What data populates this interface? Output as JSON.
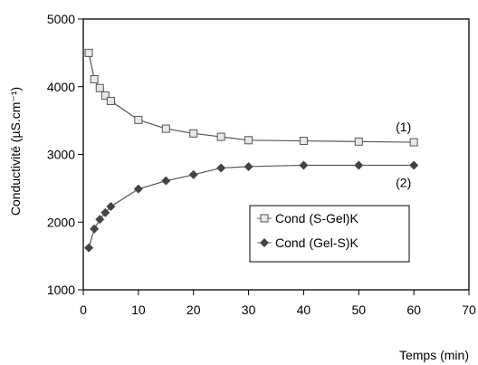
{
  "chart_data": {
    "type": "line",
    "xlabel": "Temps (min)",
    "ylabel": "Conductivité (µS.cm⁻¹)",
    "xlim": [
      0,
      70
    ],
    "ylim": [
      1000,
      5000
    ],
    "xticks": [
      0,
      10,
      20,
      30,
      40,
      50,
      60,
      70
    ],
    "yticks": [
      1000,
      2000,
      3000,
      4000,
      5000
    ],
    "grid": false,
    "legend_position": "center-right",
    "series": [
      {
        "name": "Cond (S-Gel)K",
        "marker": "square",
        "curve_label": "(1)",
        "x": [
          1,
          2,
          3,
          4,
          5,
          10,
          15,
          20,
          25,
          30,
          40,
          50,
          60
        ],
        "y": [
          4500,
          4110,
          3980,
          3870,
          3790,
          3510,
          3380,
          3310,
          3260,
          3210,
          3200,
          3190,
          3180
        ]
      },
      {
        "name": "Cond (Gel-S)K",
        "marker": "diamond",
        "curve_label": "(2)",
        "x": [
          1,
          2,
          3,
          4,
          5,
          10,
          15,
          20,
          25,
          30,
          40,
          50,
          60
        ],
        "y": [
          1620,
          1900,
          2040,
          2140,
          2230,
          2490,
          2610,
          2700,
          2800,
          2820,
          2840,
          2840,
          2840
        ]
      }
    ]
  }
}
